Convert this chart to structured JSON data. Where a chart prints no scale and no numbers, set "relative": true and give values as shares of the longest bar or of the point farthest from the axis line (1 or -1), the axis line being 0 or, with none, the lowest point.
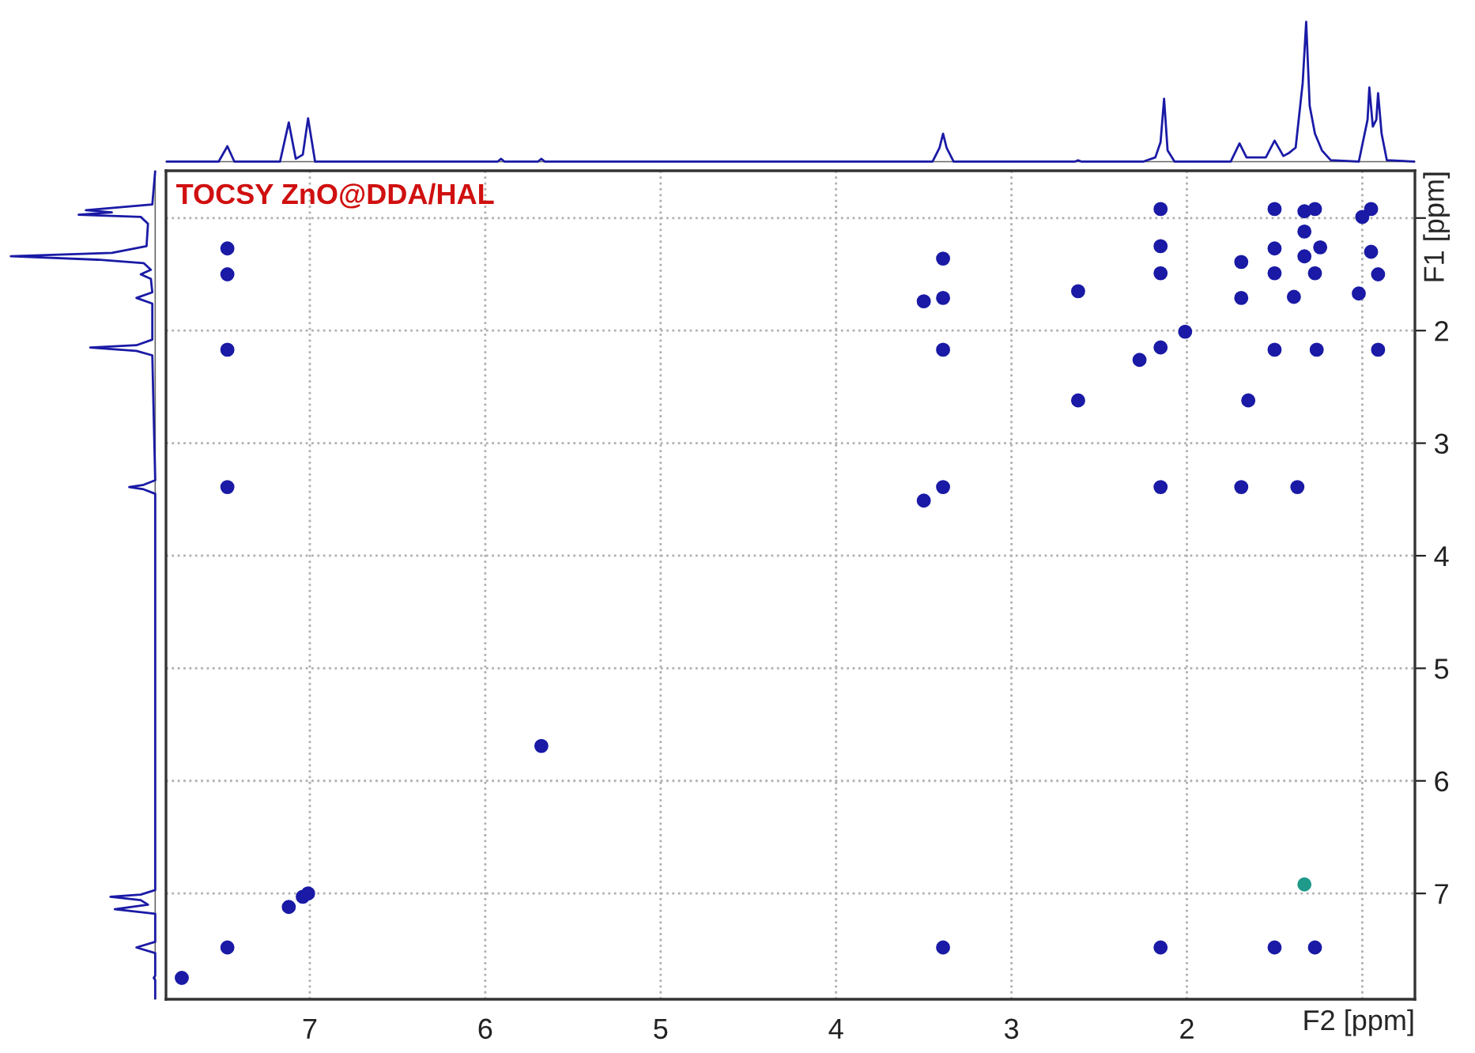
{
  "chart_data": [
    {
      "type": "line",
      "relative": true,
      "xlim": [
        7.82,
        0.7
      ],
      "series": [
        {
          "color": "#1a1aa6",
          "x": [
            7.82,
            7.52,
            7.47,
            7.43,
            7.17,
            7.12,
            7.08,
            7.04,
            7.01,
            6.97,
            5.93,
            5.91,
            5.89,
            5.7,
            5.68,
            5.66,
            3.45,
            3.41,
            3.39,
            3.37,
            3.33,
            2.64,
            2.62,
            2.6,
            2.25,
            2.18,
            2.15,
            2.13,
            2.11,
            2.07,
            1.75,
            1.7,
            1.66,
            1.55,
            1.5,
            1.45,
            1.42,
            1.38,
            1.34,
            1.32,
            1.3,
            1.27,
            1.23,
            1.18,
            1.02,
            0.97,
            0.96,
            0.94,
            0.92,
            0.91,
            0.89,
            0.86,
            0.7
          ],
          "values": [
            0,
            0,
            0.11,
            0,
            0,
            0.28,
            0.02,
            0.05,
            0.31,
            0,
            0,
            0.02,
            0,
            0,
            0.02,
            0,
            0,
            0.1,
            0.2,
            0.1,
            0,
            0,
            0.01,
            0,
            0,
            0.03,
            0.14,
            0.45,
            0.08,
            0,
            0,
            0.13,
            0.03,
            0.03,
            0.15,
            0.04,
            0.06,
            0.1,
            0.56,
            1.0,
            0.4,
            0.2,
            0.08,
            0.01,
            0,
            0.3,
            0.53,
            0.25,
            0.3,
            0.49,
            0.2,
            0.01,
            0
          ]
        }
      ]
    },
    {
      "type": "line",
      "relative": true,
      "orientation": "horizontal",
      "ylim": [
        7.94,
        0.58
      ],
      "series": [
        {
          "color": "#1a1aa6",
          "x": [
            0.58,
            0.88,
            0.93,
            0.95,
            0.97,
            0.99,
            1.05,
            1.25,
            1.31,
            1.34,
            1.37,
            1.4,
            1.46,
            1.5,
            1.54,
            1.66,
            1.71,
            1.76,
            2.08,
            2.13,
            2.15,
            2.18,
            2.22,
            3.33,
            3.37,
            3.39,
            3.41,
            3.45,
            6.97,
            7.01,
            7.03,
            7.06,
            7.1,
            7.14,
            7.18,
            7.43,
            7.48,
            7.53,
            7.73,
            7.75,
            7.77,
            7.94
          ],
          "values": [
            0,
            -0.02,
            -0.48,
            -0.3,
            -0.53,
            -0.1,
            -0.05,
            -0.06,
            -0.3,
            -1.0,
            -0.4,
            -0.08,
            -0.03,
            -0.1,
            -0.03,
            -0.02,
            -0.13,
            -0.02,
            -0.02,
            -0.13,
            -0.45,
            -0.13,
            -0.02,
            0,
            -0.08,
            -0.18,
            -0.08,
            0,
            0,
            -0.1,
            -0.31,
            -0.1,
            -0.05,
            -0.28,
            0,
            0,
            -0.13,
            0,
            0,
            -0.01,
            0,
            0
          ]
        }
      ]
    },
    {
      "type": "scatter",
      "title": "TOCSY ZnO@DDA/HAL",
      "xlabel": "F2 [ppm]",
      "ylabel": "F1 [ppm]",
      "marker": "circle",
      "grid": true,
      "xlim": [
        7.82,
        0.7
      ],
      "ylim": [
        7.94,
        0.58
      ],
      "xticks": [
        7,
        6,
        5,
        4,
        3,
        2,
        {
          "value": 1,
          "label": null
        }
      ],
      "yticks": [
        {
          "value": 1,
          "label": null
        },
        2,
        3,
        4,
        5,
        6,
        7
      ],
      "series": [
        {
          "color": "#1a1aa6",
          "x": [
            7.47,
            7.47,
            7.47,
            7.47,
            7.47,
            7.73,
            7.12,
            7.04,
            7.01,
            5.68,
            2.15,
            2.15,
            2.15,
            2.15,
            2.27,
            3.39,
            3.39,
            3.39,
            3.5,
            2.62,
            2.62,
            2.01,
            1.69,
            1.69,
            1.5,
            1.5,
            1.5,
            1.5,
            1.33,
            1.27,
            1.33,
            1.24,
            1.27,
            1.39,
            1.26,
            1.33,
            0.95,
            1.0,
            0.95,
            0.91,
            1.02,
            0.91,
            1.65,
            3.39,
            3.5,
            2.15,
            1.69,
            1.37,
            3.39,
            2.15,
            1.5,
            1.27
          ],
          "values": [
            1.27,
            1.5,
            2.17,
            3.39,
            7.48,
            7.75,
            7.12,
            7.03,
            7.0,
            5.69,
            0.92,
            1.25,
            1.49,
            2.15,
            2.26,
            1.36,
            1.71,
            2.17,
            1.74,
            1.65,
            2.62,
            2.01,
            1.39,
            1.71,
            0.92,
            1.27,
            1.49,
            2.17,
            0.94,
            0.92,
            1.34,
            1.26,
            1.49,
            1.7,
            2.17,
            1.12,
            0.92,
            0.99,
            1.3,
            1.5,
            1.67,
            2.17,
            2.62,
            3.39,
            3.51,
            3.39,
            3.39,
            3.39,
            7.48,
            7.48,
            7.48,
            7.48
          ]
        },
        {
          "color": "#1f9a8a",
          "x": [
            1.33
          ],
          "values": [
            6.92
          ]
        }
      ]
    }
  ]
}
